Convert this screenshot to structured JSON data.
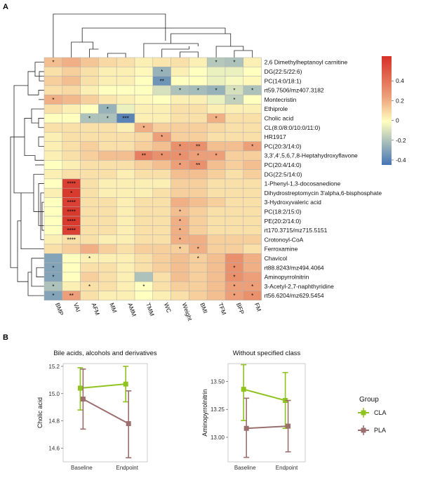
{
  "panel_labels": {
    "a": "A",
    "b": "B"
  },
  "chart_data": [
    {
      "type": "heatmap",
      "rows": [
        "2,6 Dimethylheptanoyl carnitine",
        "DG(22:5/22:6)",
        "PC(14:0/18:1)",
        "rt59.7506/mz407.3182",
        "Montecristin",
        "Ethiprole",
        "Cholic acid",
        "CL(8:0/8:0/10:0/11:0)",
        "HR1917",
        "PC(20:3/14:0)",
        "3,3',4',5,6,7,8-Heptahydroxyflavone",
        "PC(20:4/14:0)",
        "DG(22:5/14:0)",
        "1-Phenyl-1,3-docosanedione",
        "Dihydrostreptomycin 3'alpha,6-bisphosphate",
        "3-Hydroxyvaleric acid",
        "PC(18:2/15:0)",
        "PE(20:2/14:0)",
        "rt170.3715/mz715.5151",
        "Crotonoyl-CoA",
        "Ferroxamine",
        "Chavicol",
        "rt88.8243/mz494.4064",
        "Aminopyrrolnitrin",
        "3-Acetyl-2,7-naphthyridine",
        "rt56.6204/mz629.5454"
      ],
      "columns": [
        "BMP",
        "VAI",
        "AFM",
        "MM",
        "AMM",
        "TMM",
        "WC",
        "Weight",
        "BMI",
        "TFM",
        "BFP",
        "FM"
      ],
      "values": [
        [
          0.2,
          0.25,
          0.18,
          0.12,
          0.1,
          0.05,
          0.08,
          0.1,
          0.05,
          -0.18,
          -0.2,
          0.05
        ],
        [
          0.1,
          0.15,
          0.1,
          0.05,
          0.05,
          0.02,
          -0.25,
          0.05,
          0.0,
          -0.05,
          -0.05,
          0.0
        ],
        [
          0.15,
          0.2,
          0.1,
          0.05,
          0.05,
          0.0,
          -0.35,
          0.0,
          0.0,
          -0.05,
          -0.02,
          0.02
        ],
        [
          0.1,
          0.12,
          0.05,
          0.0,
          0.0,
          0.0,
          -0.1,
          -0.2,
          -0.22,
          -0.25,
          -0.1,
          -0.2
        ],
        [
          0.25,
          0.22,
          0.15,
          0.08,
          0.05,
          0.02,
          0.0,
          0.05,
          0.05,
          -0.05,
          -0.15,
          0.0
        ],
        [
          0.1,
          0.05,
          0.0,
          -0.25,
          -0.05,
          0.05,
          0.05,
          0.1,
          0.1,
          0.05,
          0.05,
          0.05
        ],
        [
          0.0,
          0.0,
          -0.2,
          -0.2,
          -0.4,
          0.05,
          0.05,
          0.1,
          0.1,
          0.25,
          0.1,
          0.1
        ],
        [
          0.1,
          0.1,
          0.1,
          0.1,
          0.05,
          0.25,
          0.15,
          0.15,
          0.15,
          0.12,
          0.1,
          0.1
        ],
        [
          0.05,
          0.1,
          0.1,
          0.1,
          0.1,
          0.12,
          0.3,
          0.15,
          0.15,
          0.1,
          0.1,
          0.1
        ],
        [
          0.05,
          0.1,
          0.15,
          0.1,
          0.1,
          0.15,
          0.2,
          0.35,
          0.35,
          0.2,
          0.2,
          0.3
        ],
        [
          0.05,
          0.1,
          0.15,
          0.2,
          0.2,
          0.4,
          0.35,
          0.35,
          0.3,
          0.3,
          0.15,
          0.15
        ],
        [
          0.0,
          0.05,
          0.1,
          0.1,
          0.1,
          0.15,
          0.2,
          0.3,
          0.35,
          0.2,
          0.15,
          0.2
        ],
        [
          0.05,
          0.1,
          0.1,
          0.1,
          0.05,
          0.1,
          0.1,
          0.2,
          0.2,
          0.15,
          0.1,
          0.15
        ],
        [
          0.0,
          0.6,
          0.1,
          0.05,
          0.05,
          0.05,
          0.05,
          0.15,
          0.15,
          0.1,
          0.1,
          0.1
        ],
        [
          0.05,
          0.62,
          0.1,
          0.05,
          0.05,
          0.05,
          0.1,
          0.15,
          0.15,
          0.1,
          0.1,
          0.1
        ],
        [
          0.0,
          0.6,
          0.1,
          0.1,
          0.05,
          0.1,
          0.1,
          0.25,
          0.2,
          0.15,
          0.1,
          0.1
        ],
        [
          0.0,
          0.62,
          0.1,
          0.1,
          0.05,
          0.1,
          0.1,
          0.2,
          0.15,
          0.1,
          0.1,
          0.1
        ],
        [
          0.0,
          0.62,
          0.1,
          0.1,
          0.05,
          0.1,
          0.1,
          0.25,
          0.15,
          0.1,
          0.1,
          0.1
        ],
        [
          0.0,
          0.6,
          0.1,
          0.1,
          0.05,
          0.1,
          0.1,
          0.25,
          0.15,
          0.1,
          0.1,
          0.1
        ],
        [
          0.05,
          0.1,
          0.1,
          0.05,
          0.05,
          0.1,
          0.1,
          0.25,
          0.25,
          0.15,
          0.15,
          0.15
        ],
        [
          0.1,
          0.15,
          0.25,
          0.15,
          0.1,
          0.15,
          0.15,
          0.15,
          0.25,
          0.15,
          0.15,
          0.1
        ],
        [
          -0.3,
          0.0,
          0.05,
          0.05,
          0.05,
          0.1,
          0.15,
          0.2,
          0.15,
          0.2,
          0.35,
          0.25
        ],
        [
          -0.3,
          0.0,
          0.1,
          0.1,
          0.05,
          0.1,
          0.15,
          0.2,
          0.15,
          0.2,
          0.35,
          0.25
        ],
        [
          -0.3,
          0.0,
          0.15,
          0.1,
          0.05,
          -0.2,
          0.1,
          0.2,
          0.15,
          0.2,
          0.35,
          0.3
        ],
        [
          -0.2,
          0.05,
          0.1,
          0.1,
          0.05,
          0.0,
          0.1,
          0.15,
          0.15,
          0.2,
          0.3,
          0.3
        ],
        [
          -0.3,
          0.3,
          0.1,
          0.05,
          0.05,
          0.0,
          0.05,
          0.1,
          0.15,
          0.2,
          0.3,
          0.35
        ]
      ],
      "stars": [
        [
          "*",
          "",
          "",
          "",
          "",
          "",
          "",
          "",
          "",
          "*",
          "*",
          ""
        ],
        [
          "",
          "",
          "",
          "",
          "",
          "",
          "*",
          "",
          "",
          "",
          "",
          ""
        ],
        [
          "",
          "",
          "",
          "",
          "",
          "",
          "**",
          "",
          "",
          "",
          "",
          ""
        ],
        [
          "",
          "",
          "",
          "",
          "",
          "",
          "",
          "*",
          "*",
          "*",
          "*",
          "*"
        ],
        [
          "*",
          "",
          "",
          "",
          "",
          "",
          "",
          "",
          "",
          "",
          "*",
          ""
        ],
        [
          "",
          "",
          "",
          "*",
          "",
          "",
          "",
          "",
          "",
          "",
          "",
          ""
        ],
        [
          "",
          "",
          "*",
          "*",
          "***",
          "",
          "",
          "",
          "",
          "*",
          "",
          ""
        ],
        [
          "",
          "",
          "",
          "",
          "",
          "*",
          "",
          "",
          "",
          "",
          "",
          ""
        ],
        [
          "",
          "",
          "",
          "",
          "",
          "",
          "*",
          "",
          "",
          "",
          "",
          ""
        ],
        [
          "",
          "",
          "",
          "",
          "",
          "",
          "",
          "*",
          "**",
          "",
          "",
          "*"
        ],
        [
          "",
          "",
          "",
          "",
          "",
          "**",
          "*",
          "*",
          "*",
          "*",
          "",
          ""
        ],
        [
          "",
          "",
          "",
          "",
          "",
          "",
          "",
          "*",
          "**",
          "",
          "",
          ""
        ],
        [
          "",
          "",
          "",
          "",
          "",
          "",
          "",
          "",
          "",
          "",
          "",
          ""
        ],
        [
          "",
          "****",
          "",
          "",
          "",
          "",
          "",
          "",
          "",
          "",
          "",
          ""
        ],
        [
          "",
          "*",
          "",
          "",
          "",
          "",
          "",
          "",
          "",
          "",
          "",
          ""
        ],
        [
          "",
          "****",
          "",
          "",
          "",
          "",
          "",
          "",
          "",
          "",
          "",
          ""
        ],
        [
          "",
          "****",
          "",
          "",
          "",
          "",
          "",
          "*",
          "",
          "",
          "",
          ""
        ],
        [
          "",
          "****",
          "",
          "",
          "",
          "",
          "",
          "*",
          "",
          "",
          "",
          ""
        ],
        [
          "",
          "****",
          "",
          "",
          "",
          "",
          "",
          "*",
          "",
          "",
          "",
          ""
        ],
        [
          "",
          "****",
          "",
          "",
          "",
          "",
          "",
          "*",
          "",
          "",
          "",
          ""
        ],
        [
          "",
          "",
          "",
          "",
          "",
          "",
          "",
          "*",
          "*",
          "",
          "",
          ""
        ],
        [
          "",
          "",
          "*",
          "",
          "",
          "",
          "",
          "",
          "*",
          "",
          "",
          ""
        ],
        [
          "*",
          "",
          "",
          "",
          "",
          "",
          "",
          "",
          "",
          "",
          "*",
          ""
        ],
        [
          "*",
          "",
          "",
          "",
          "",
          "",
          "",
          "",
          "",
          "",
          "*",
          ""
        ],
        [
          "*",
          "",
          "*",
          "",
          "",
          "*",
          "",
          "",
          "",
          "",
          "*",
          "*"
        ],
        [
          "*",
          "**",
          "",
          "",
          "",
          "",
          "",
          "",
          "",
          "",
          "*",
          "*"
        ]
      ],
      "legend_ticks": [
        "0.4",
        "0.2",
        "0",
        "-0.2",
        "-0.4"
      ],
      "legend_values": [
        0.4,
        0.2,
        0,
        -0.2,
        -0.4
      ],
      "range": [
        -0.45,
        0.65
      ],
      "colors": {
        "neg": "#4575b4",
        "mid": "#ffffbf",
        "pos": "#d73027",
        "grid": "#b0b0b0"
      }
    },
    {
      "type": "line",
      "title": "Bile acids, alcohols and derivatives",
      "ylabel": "Cholic acid",
      "categories": [
        "Baseline",
        "Endpoint"
      ],
      "ylim": [
        14.5,
        15.22
      ],
      "yticks": [
        "15.2",
        "15.0",
        "14.8",
        "14.6"
      ],
      "ytick_values": [
        15.2,
        15.0,
        14.8,
        14.6
      ],
      "series": [
        {
          "name": "CLA",
          "values": [
            15.04,
            15.07
          ],
          "err_low": [
            14.88,
            14.94
          ],
          "err_high": [
            15.19,
            15.2
          ]
        },
        {
          "name": "PLA",
          "values": [
            14.96,
            14.78
          ],
          "err_low": [
            14.74,
            14.53
          ],
          "err_high": [
            15.18,
            15.02
          ]
        }
      ]
    },
    {
      "type": "line",
      "title": "Without specified class",
      "ylabel": "Aminopyrrolnitrin",
      "categories": [
        "Baseline",
        "Endpoint"
      ],
      "ylim": [
        12.78,
        13.66
      ],
      "yticks": [
        "13.50",
        "13.25",
        "13.00"
      ],
      "ytick_values": [
        13.5,
        13.25,
        13.0
      ],
      "series": [
        {
          "name": "CLA",
          "values": [
            13.43,
            13.33
          ],
          "err_low": [
            13.15,
            13.08
          ],
          "err_high": [
            13.65,
            13.58
          ]
        },
        {
          "name": "PLA",
          "values": [
            13.08,
            13.1
          ],
          "err_low": [
            12.82,
            12.87
          ],
          "err_high": [
            13.35,
            13.33
          ]
        }
      ]
    }
  ],
  "legend": {
    "title": "Group",
    "items": [
      {
        "name": "CLA",
        "color": "#8fc31f"
      },
      {
        "name": "PLA",
        "color": "#9c6f6f"
      }
    ]
  }
}
